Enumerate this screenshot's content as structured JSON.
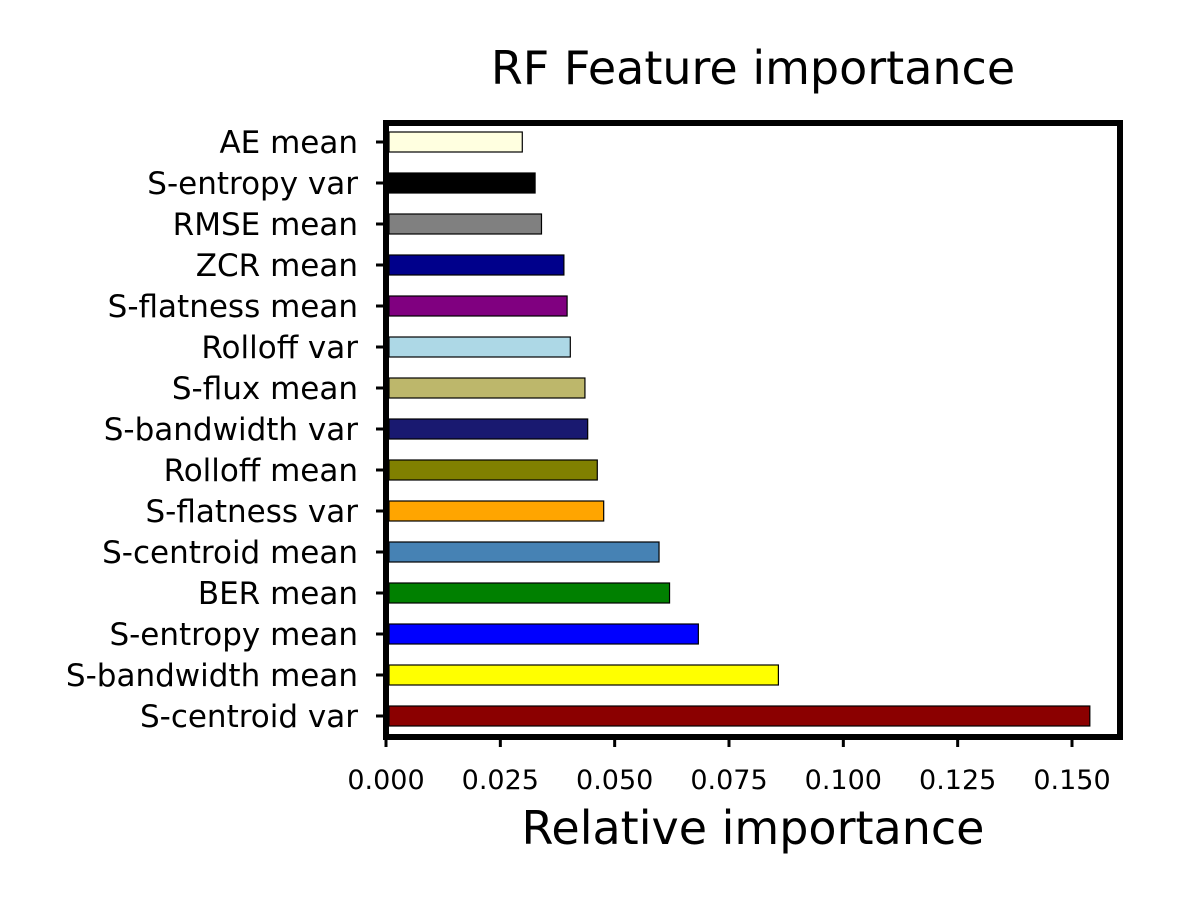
{
  "chart_data": {
    "type": "bar",
    "orientation": "horizontal",
    "title": "RF Feature importance",
    "xlabel": "Relative importance",
    "ylabel": "",
    "xlim": [
      0.0,
      0.1615
    ],
    "xticks": [
      0.0,
      0.025,
      0.05,
      0.075,
      0.1,
      0.125,
      0.15
    ],
    "xtick_labels": [
      "0.000",
      "0.025",
      "0.050",
      "0.075",
      "0.100",
      "0.125",
      "0.150"
    ],
    "grid": false,
    "legend": "none",
    "bars": [
      {
        "category": "AE mean",
        "value": 0.0298,
        "color": "#ffffe0"
      },
      {
        "category": "S-entropy var",
        "value": 0.0326,
        "color": "#000000"
      },
      {
        "category": "RMSE mean",
        "value": 0.034,
        "color": "#808080"
      },
      {
        "category": "ZCR mean",
        "value": 0.0389,
        "color": "#00008b"
      },
      {
        "category": "S-flatness mean",
        "value": 0.0396,
        "color": "#800080"
      },
      {
        "category": "Rolloff var",
        "value": 0.0403,
        "color": "#add8e6"
      },
      {
        "category": "S-flux mean",
        "value": 0.0435,
        "color": "#bdb76b"
      },
      {
        "category": "S-bandwidth var",
        "value": 0.0441,
        "color": "#191970"
      },
      {
        "category": "Rolloff mean",
        "value": 0.0462,
        "color": "#808000"
      },
      {
        "category": "S-flatness var",
        "value": 0.0476,
        "color": "#ffa500"
      },
      {
        "category": "S-centroid mean",
        "value": 0.0597,
        "color": "#4682b4"
      },
      {
        "category": "BER mean",
        "value": 0.062,
        "color": "#008000"
      },
      {
        "category": "S-entropy mean",
        "value": 0.0683,
        "color": "#0000ff"
      },
      {
        "category": "S-bandwidth mean",
        "value": 0.0858,
        "color": "#ffff00"
      },
      {
        "category": "S-centroid var",
        "value": 0.1539,
        "color": "#8b0000"
      }
    ]
  }
}
